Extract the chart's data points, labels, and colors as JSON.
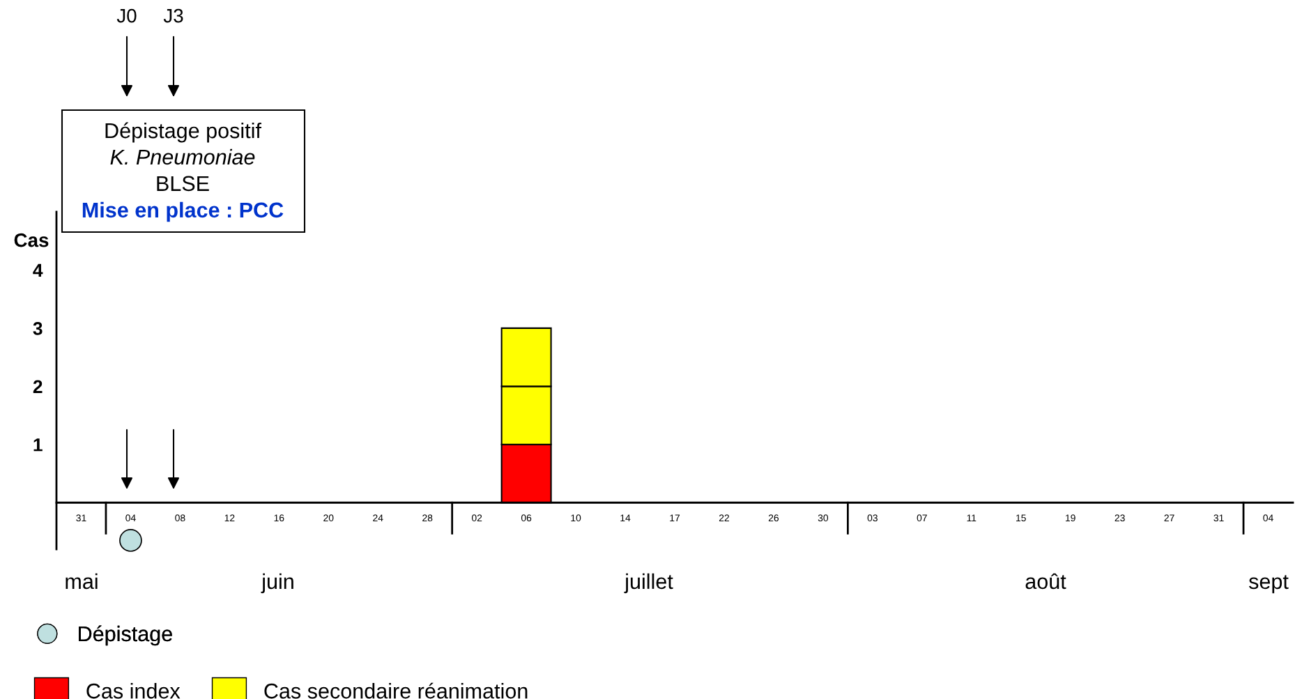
{
  "chart_data": {
    "type": "bar",
    "stacked": true,
    "ylabel": "Cas",
    "categories": [
      "31",
      "04",
      "08",
      "12",
      "16",
      "20",
      "24",
      "28",
      "02",
      "06",
      "10",
      "14",
      "17",
      "22",
      "26",
      "30",
      "03",
      "07",
      "11",
      "15",
      "19",
      "23",
      "27",
      "31",
      "04"
    ],
    "series": [
      {
        "name": "Cas index",
        "color": "#ff0000",
        "values": [
          0,
          0,
          0,
          0,
          0,
          0,
          0,
          0,
          0,
          1,
          0,
          0,
          0,
          0,
          0,
          0,
          0,
          0,
          0,
          0,
          0,
          0,
          0,
          0,
          0
        ]
      },
      {
        "name": "Cas secondaire réanimation",
        "color": "#ffff00",
        "values": [
          0,
          0,
          0,
          0,
          0,
          0,
          0,
          0,
          0,
          1,
          0,
          0,
          0,
          0,
          0,
          0,
          0,
          0,
          0,
          0,
          0,
          0,
          0,
          0,
          0
        ]
      },
      {
        "color": "#ffff00",
        "values": [
          0,
          0,
          0,
          0,
          0,
          0,
          0,
          0,
          0,
          1,
          0,
          0,
          0,
          0,
          0,
          0,
          0,
          0,
          0,
          0,
          0,
          0,
          0,
          0,
          0
        ]
      },
      {
        "name": "Dépistage",
        "type": "scatter",
        "color": "#bfe0e0",
        "marker": "circle",
        "values": [
          null,
          -0.65,
          null,
          null,
          null,
          null,
          null,
          null,
          null,
          null,
          null,
          null,
          null,
          null,
          null,
          null,
          null,
          null,
          null,
          null,
          null,
          null,
          null,
          null,
          null
        ]
      }
    ],
    "ylim": [
      -0.8,
      5
    ],
    "yticks": [
      1,
      2,
      3,
      4
    ],
    "annotations": [
      "J0",
      "J3",
      "Dépistage positif",
      "K. Pneumoniae",
      "BLSE",
      "Mise en place : PCC",
      "mai",
      "juin",
      "juillet",
      "août",
      "sept"
    ],
    "legend": "bottom left",
    "grid": false
  }
}
